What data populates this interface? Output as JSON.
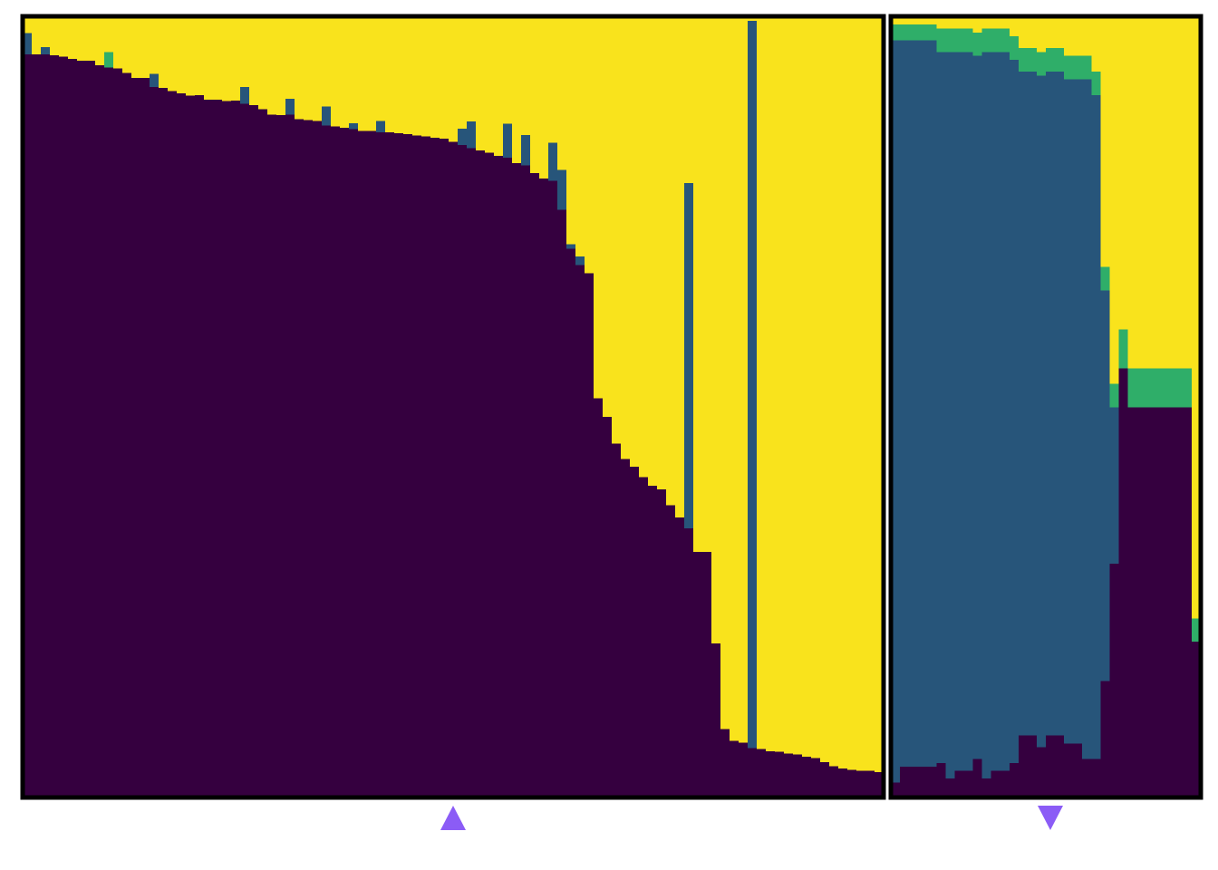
{
  "chart_data": {
    "type": "bar",
    "stacked": true,
    "normalized": true,
    "ylim": [
      0,
      1
    ],
    "grid": false,
    "legend": "none",
    "title": "",
    "xlabel": "",
    "ylabel": "",
    "series_colors": [
      "#35003f",
      "#27557a",
      "#2fae69",
      "#f9e31c"
    ],
    "panels": [
      {
        "id": "left-panel",
        "n_samples": 95,
        "series": [
          {
            "values": [
              0.952,
              0.952,
              0.952,
              0.951,
              0.949,
              0.946,
              0.944,
              0.944,
              0.938,
              0.935,
              0.934,
              0.928,
              0.922,
              0.922,
              0.91,
              0.909,
              0.905,
              0.902,
              0.899,
              0.9,
              0.894,
              0.894,
              0.892,
              0.893,
              0.889,
              0.887,
              0.882,
              0.875,
              0.874,
              0.875,
              0.869,
              0.868,
              0.867,
              0.861,
              0.86,
              0.858,
              0.856,
              0.854,
              0.854,
              0.852,
              0.852,
              0.851,
              0.85,
              0.848,
              0.847,
              0.845,
              0.844,
              0.84,
              0.836,
              0.832,
              0.829,
              0.826,
              0.822,
              0.82,
              0.813,
              0.81,
              0.8,
              0.793,
              0.79,
              0.753,
              0.703,
              0.682,
              0.672,
              0.512,
              0.488,
              0.454,
              0.434,
              0.424,
              0.411,
              0.4,
              0.395,
              0.375,
              0.359,
              0.345,
              0.315,
              0.315,
              0.198,
              0.088,
              0.073,
              0.071,
              0.064,
              0.063,
              0.06,
              0.059,
              0.057,
              0.056,
              0.053,
              0.051,
              0.046,
              0.041,
              0.038,
              0.036,
              0.035,
              0.035,
              0.033
            ]
          },
          {
            "values": [
              0.027,
              0.0,
              0.009,
              0.0,
              0.0,
              0.0,
              0.0,
              0.0,
              0.0,
              0.0,
              0.0,
              0.0,
              0.0,
              0.0,
              0.017,
              0.0,
              0.0,
              0.0,
              0.0,
              0.0,
              0.0,
              0.0,
              0.0,
              0.0,
              0.021,
              0.0,
              0.0,
              0.0,
              0.0,
              0.02,
              0.0,
              0.0,
              0.0,
              0.024,
              0.0,
              0.0,
              0.008,
              0.0,
              0.0,
              0.015,
              0.0,
              0.0,
              0.0,
              0.0,
              0.0,
              0.0,
              0.0,
              0.0,
              0.021,
              0.034,
              0.0,
              0.0,
              0.0,
              0.043,
              0.0,
              0.039,
              0.0,
              0.0,
              0.049,
              0.051,
              0.006,
              0.011,
              0.0,
              0.0,
              0.0,
              0.0,
              0.0,
              0.0,
              0.0,
              0.0,
              0.0,
              0.0,
              0.0,
              0.442,
              0.0,
              0.0,
              0.0,
              0.0,
              0.0,
              0.0,
              0.931,
              0.0,
              0.0,
              0.0,
              0.0,
              0.0,
              0.0,
              0.0,
              0.0,
              0.0,
              0.0,
              0.0,
              0.0,
              0.0,
              0.0
            ]
          },
          {
            "values": [
              0.0,
              0.0,
              0.0,
              0.0,
              0.0,
              0.0,
              0.0,
              0.0,
              0.0,
              0.02,
              0.0,
              0.0,
              0.0,
              0.0,
              0.0,
              0.0,
              0.0,
              0.0,
              0.0,
              0.0,
              0.0,
              0.0,
              0.0,
              0.0,
              0.0,
              0.0,
              0.0,
              0.0,
              0.0,
              0.0,
              0.0,
              0.0,
              0.0,
              0.0,
              0.0,
              0.0,
              0.0,
              0.0,
              0.0,
              0.0,
              0.0,
              0.0,
              0.0,
              0.0,
              0.0,
              0.0,
              0.0,
              0.0,
              0.0,
              0.0,
              0.0,
              0.0,
              0.0,
              0.0,
              0.0,
              0.0,
              0.0,
              0.0,
              0.0,
              0.0,
              0.0,
              0.0,
              0.0,
              0.0,
              0.0,
              0.0,
              0.0,
              0.0,
              0.0,
              0.0,
              0.0,
              0.0,
              0.0,
              0.0,
              0.0,
              0.0,
              0.0,
              0.0,
              0.0,
              0.0,
              0.0,
              0.0,
              0.0,
              0.0,
              0.0,
              0.0,
              0.0,
              0.0,
              0.0,
              0.0,
              0.0,
              0.0,
              0.0,
              0.0,
              0.0
            ]
          }
        ]
      },
      {
        "id": "right-panel",
        "n_samples": 34,
        "series": [
          {
            "values": [
              0.02,
              0.04,
              0.04,
              0.04,
              0.04,
              0.045,
              0.025,
              0.035,
              0.035,
              0.05,
              0.025,
              0.035,
              0.035,
              0.045,
              0.08,
              0.08,
              0.065,
              0.08,
              0.08,
              0.07,
              0.07,
              0.05,
              0.05,
              0.15,
              0.3,
              0.55,
              0.5,
              0.5,
              0.5,
              0.5,
              0.5,
              0.5,
              0.5,
              0.2
            ]
          },
          {
            "values": [
              0.95,
              0.93,
              0.93,
              0.93,
              0.93,
              0.91,
              0.93,
              0.92,
              0.92,
              0.9,
              0.93,
              0.92,
              0.92,
              0.9,
              0.85,
              0.85,
              0.86,
              0.85,
              0.85,
              0.85,
              0.85,
              0.87,
              0.85,
              0.5,
              0.2,
              0.0,
              0.0,
              0.0,
              0.0,
              0.0,
              0.0,
              0.0,
              0.0,
              0.0
            ]
          },
          {
            "values": [
              0.02,
              0.02,
              0.02,
              0.02,
              0.02,
              0.03,
              0.03,
              0.03,
              0.03,
              0.03,
              0.03,
              0.03,
              0.03,
              0.03,
              0.03,
              0.03,
              0.03,
              0.03,
              0.03,
              0.03,
              0.03,
              0.03,
              0.03,
              0.03,
              0.03,
              0.05,
              0.05,
              0.05,
              0.05,
              0.05,
              0.05,
              0.05,
              0.05,
              0.03
            ]
          }
        ]
      }
    ],
    "markers": [
      {
        "name": "marker-up",
        "shape": "triangle-up",
        "color": "#8b5cf6",
        "panel": "left-panel",
        "sample_index": 47
      },
      {
        "name": "marker-down",
        "shape": "triangle-down",
        "color": "#8b5cf6",
        "panel": "right-panel",
        "sample_index": 17
      }
    ]
  }
}
